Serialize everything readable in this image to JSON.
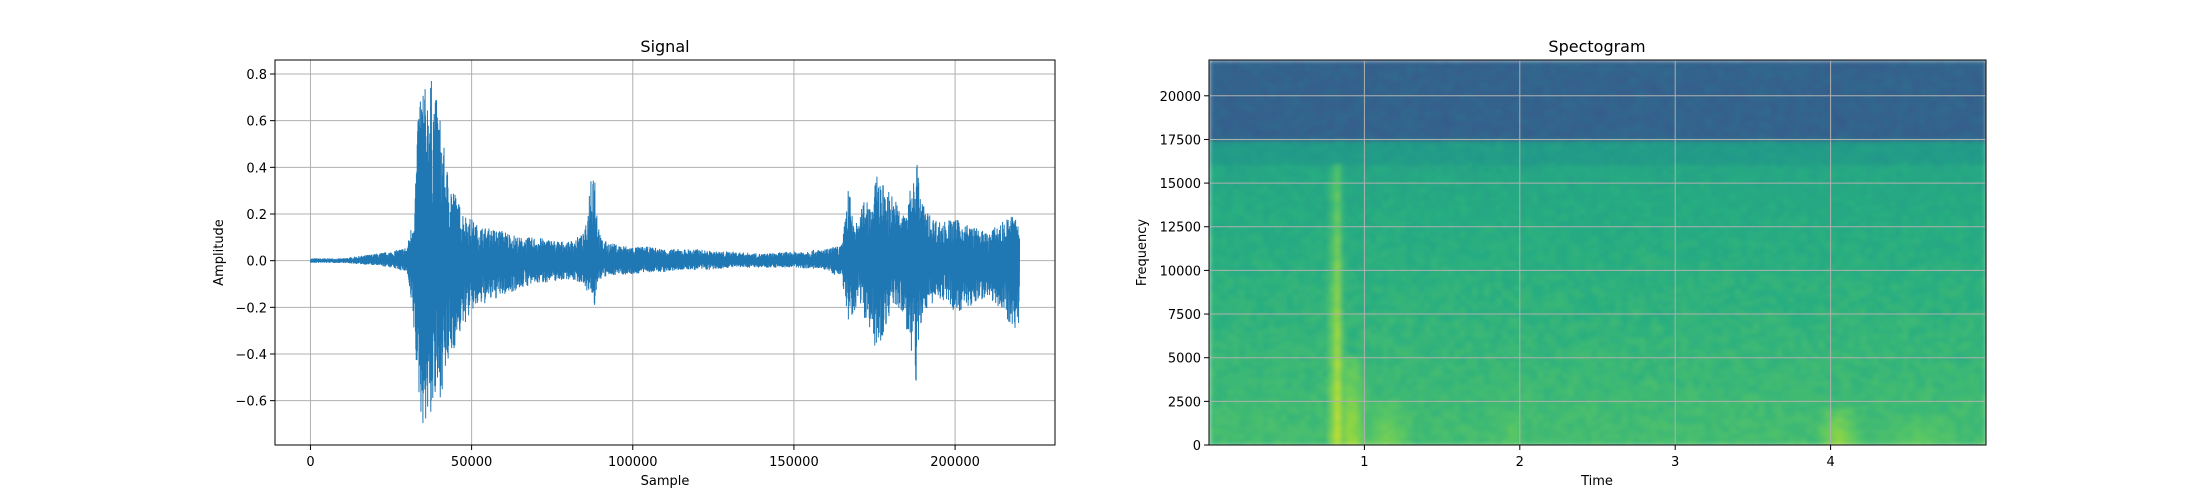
{
  "chart_data": [
    {
      "type": "line",
      "title": "Signal",
      "xlabel": "Sample",
      "ylabel": "Amplitude",
      "xlim": [
        -11000,
        231000
      ],
      "ylim": [
        -0.79,
        0.86
      ],
      "grid": true,
      "xticks": [
        0,
        50000,
        100000,
        150000,
        200000
      ],
      "xtick_labels": [
        "0",
        "50000",
        "100000",
        "150000",
        "200000"
      ],
      "yticks": [
        -0.6,
        -0.4,
        -0.2,
        0.0,
        0.2,
        0.4,
        0.6,
        0.8
      ],
      "ytick_labels": [
        "−0.6",
        "−0.4",
        "−0.2",
        "0.0",
        "0.2",
        "0.4",
        "0.6",
        "0.8"
      ],
      "color": "#1f77b4",
      "series": [
        {
          "envelope_x": [
            0,
            10000,
            20000,
            25000,
            30000,
            32000,
            33000,
            34000,
            35000,
            36000,
            37000,
            38000,
            39000,
            40000,
            42000,
            44000,
            46000,
            48000,
            50000,
            52000,
            55000,
            60000,
            65000,
            70000,
            75000,
            80000,
            85000,
            86000,
            87000,
            88000,
            89000,
            90000,
            92000,
            95000,
            100000,
            105000,
            110000,
            115000,
            120000,
            125000,
            130000,
            140000,
            150000,
            160000,
            165000,
            167000,
            168000,
            170000,
            172000,
            174000,
            176000,
            178000,
            180000,
            182000,
            184000,
            186000,
            187000,
            188000,
            189000,
            190000,
            192000,
            195000,
            200000,
            205000,
            210000,
            215000,
            218000,
            220000
          ],
          "envelope_max": [
            0.01,
            0.01,
            0.03,
            0.04,
            0.06,
            0.2,
            0.5,
            0.77,
            0.78,
            0.72,
            0.8,
            0.76,
            0.7,
            0.65,
            0.42,
            0.33,
            0.25,
            0.2,
            0.18,
            0.15,
            0.14,
            0.13,
            0.1,
            0.1,
            0.09,
            0.08,
            0.12,
            0.2,
            0.41,
            0.46,
            0.2,
            0.1,
            0.08,
            0.07,
            0.06,
            0.06,
            0.05,
            0.05,
            0.05,
            0.04,
            0.04,
            0.03,
            0.04,
            0.05,
            0.07,
            0.34,
            0.2,
            0.15,
            0.3,
            0.26,
            0.38,
            0.32,
            0.3,
            0.25,
            0.2,
            0.3,
            0.34,
            0.48,
            0.3,
            0.25,
            0.2,
            0.17,
            0.18,
            0.15,
            0.12,
            0.17,
            0.2,
            0.16
          ],
          "envelope_min": [
            -0.01,
            -0.01,
            -0.02,
            -0.03,
            -0.05,
            -0.3,
            -0.5,
            -0.65,
            -0.71,
            -0.7,
            -0.68,
            -0.65,
            -0.62,
            -0.6,
            -0.5,
            -0.4,
            -0.33,
            -0.27,
            -0.22,
            -0.2,
            -0.18,
            -0.15,
            -0.12,
            -0.1,
            -0.09,
            -0.08,
            -0.1,
            -0.14,
            -0.15,
            -0.22,
            -0.1,
            -0.08,
            -0.07,
            -0.06,
            -0.06,
            -0.05,
            -0.05,
            -0.04,
            -0.04,
            -0.04,
            -0.03,
            -0.03,
            -0.03,
            -0.04,
            -0.08,
            -0.29,
            -0.29,
            -0.15,
            -0.25,
            -0.3,
            -0.43,
            -0.3,
            -0.22,
            -0.2,
            -0.25,
            -0.35,
            -0.5,
            -0.57,
            -0.3,
            -0.24,
            -0.2,
            -0.16,
            -0.22,
            -0.2,
            -0.15,
            -0.22,
            -0.3,
            -0.28
          ]
        }
      ]
    },
    {
      "type": "heatmap",
      "title": "Spectogram",
      "xlabel": "Time",
      "ylabel": "Frequency",
      "xlim": [
        0,
        5.0
      ],
      "ylim": [
        0,
        22050
      ],
      "grid": true,
      "xticks": [
        1,
        2,
        3,
        4
      ],
      "xtick_labels": [
        "1",
        "2",
        "3",
        "4"
      ],
      "yticks": [
        0,
        2500,
        5000,
        7500,
        10000,
        12500,
        15000,
        17500,
        20000
      ],
      "ytick_labels": [
        "0",
        "2500",
        "5000",
        "7500",
        "10000",
        "12500",
        "15000",
        "17500",
        "20000"
      ],
      "colormap": "viridis",
      "colors": {
        "upper_band": "#2d6f8e",
        "mid_band": "#23a683",
        "low_band": "#8fd64d",
        "peak": "#e3e418"
      },
      "bands": [
        {
          "freq_from": 17500,
          "freq_to": 22050,
          "level": 0.32
        },
        {
          "freq_from": 16000,
          "freq_to": 17500,
          "level": 0.55
        },
        {
          "freq_from": 0,
          "freq_to": 16000,
          "level": 0.6
        }
      ],
      "bursts": [
        {
          "time": 0.82,
          "width": 0.1,
          "freq_to": 16000,
          "level": 0.95
        },
        {
          "time": 0.92,
          "width": 0.2,
          "freq_to": 5000,
          "level": 0.88
        },
        {
          "time": 1.15,
          "width": 0.35,
          "freq_to": 2500,
          "level": 0.8
        },
        {
          "time": 1.95,
          "width": 0.15,
          "freq_to": 2000,
          "level": 0.75
        },
        {
          "time": 4.05,
          "width": 0.3,
          "freq_to": 2000,
          "level": 0.85
        },
        {
          "time": 4.6,
          "width": 0.5,
          "freq_to": 1500,
          "level": 0.75
        }
      ]
    }
  ]
}
